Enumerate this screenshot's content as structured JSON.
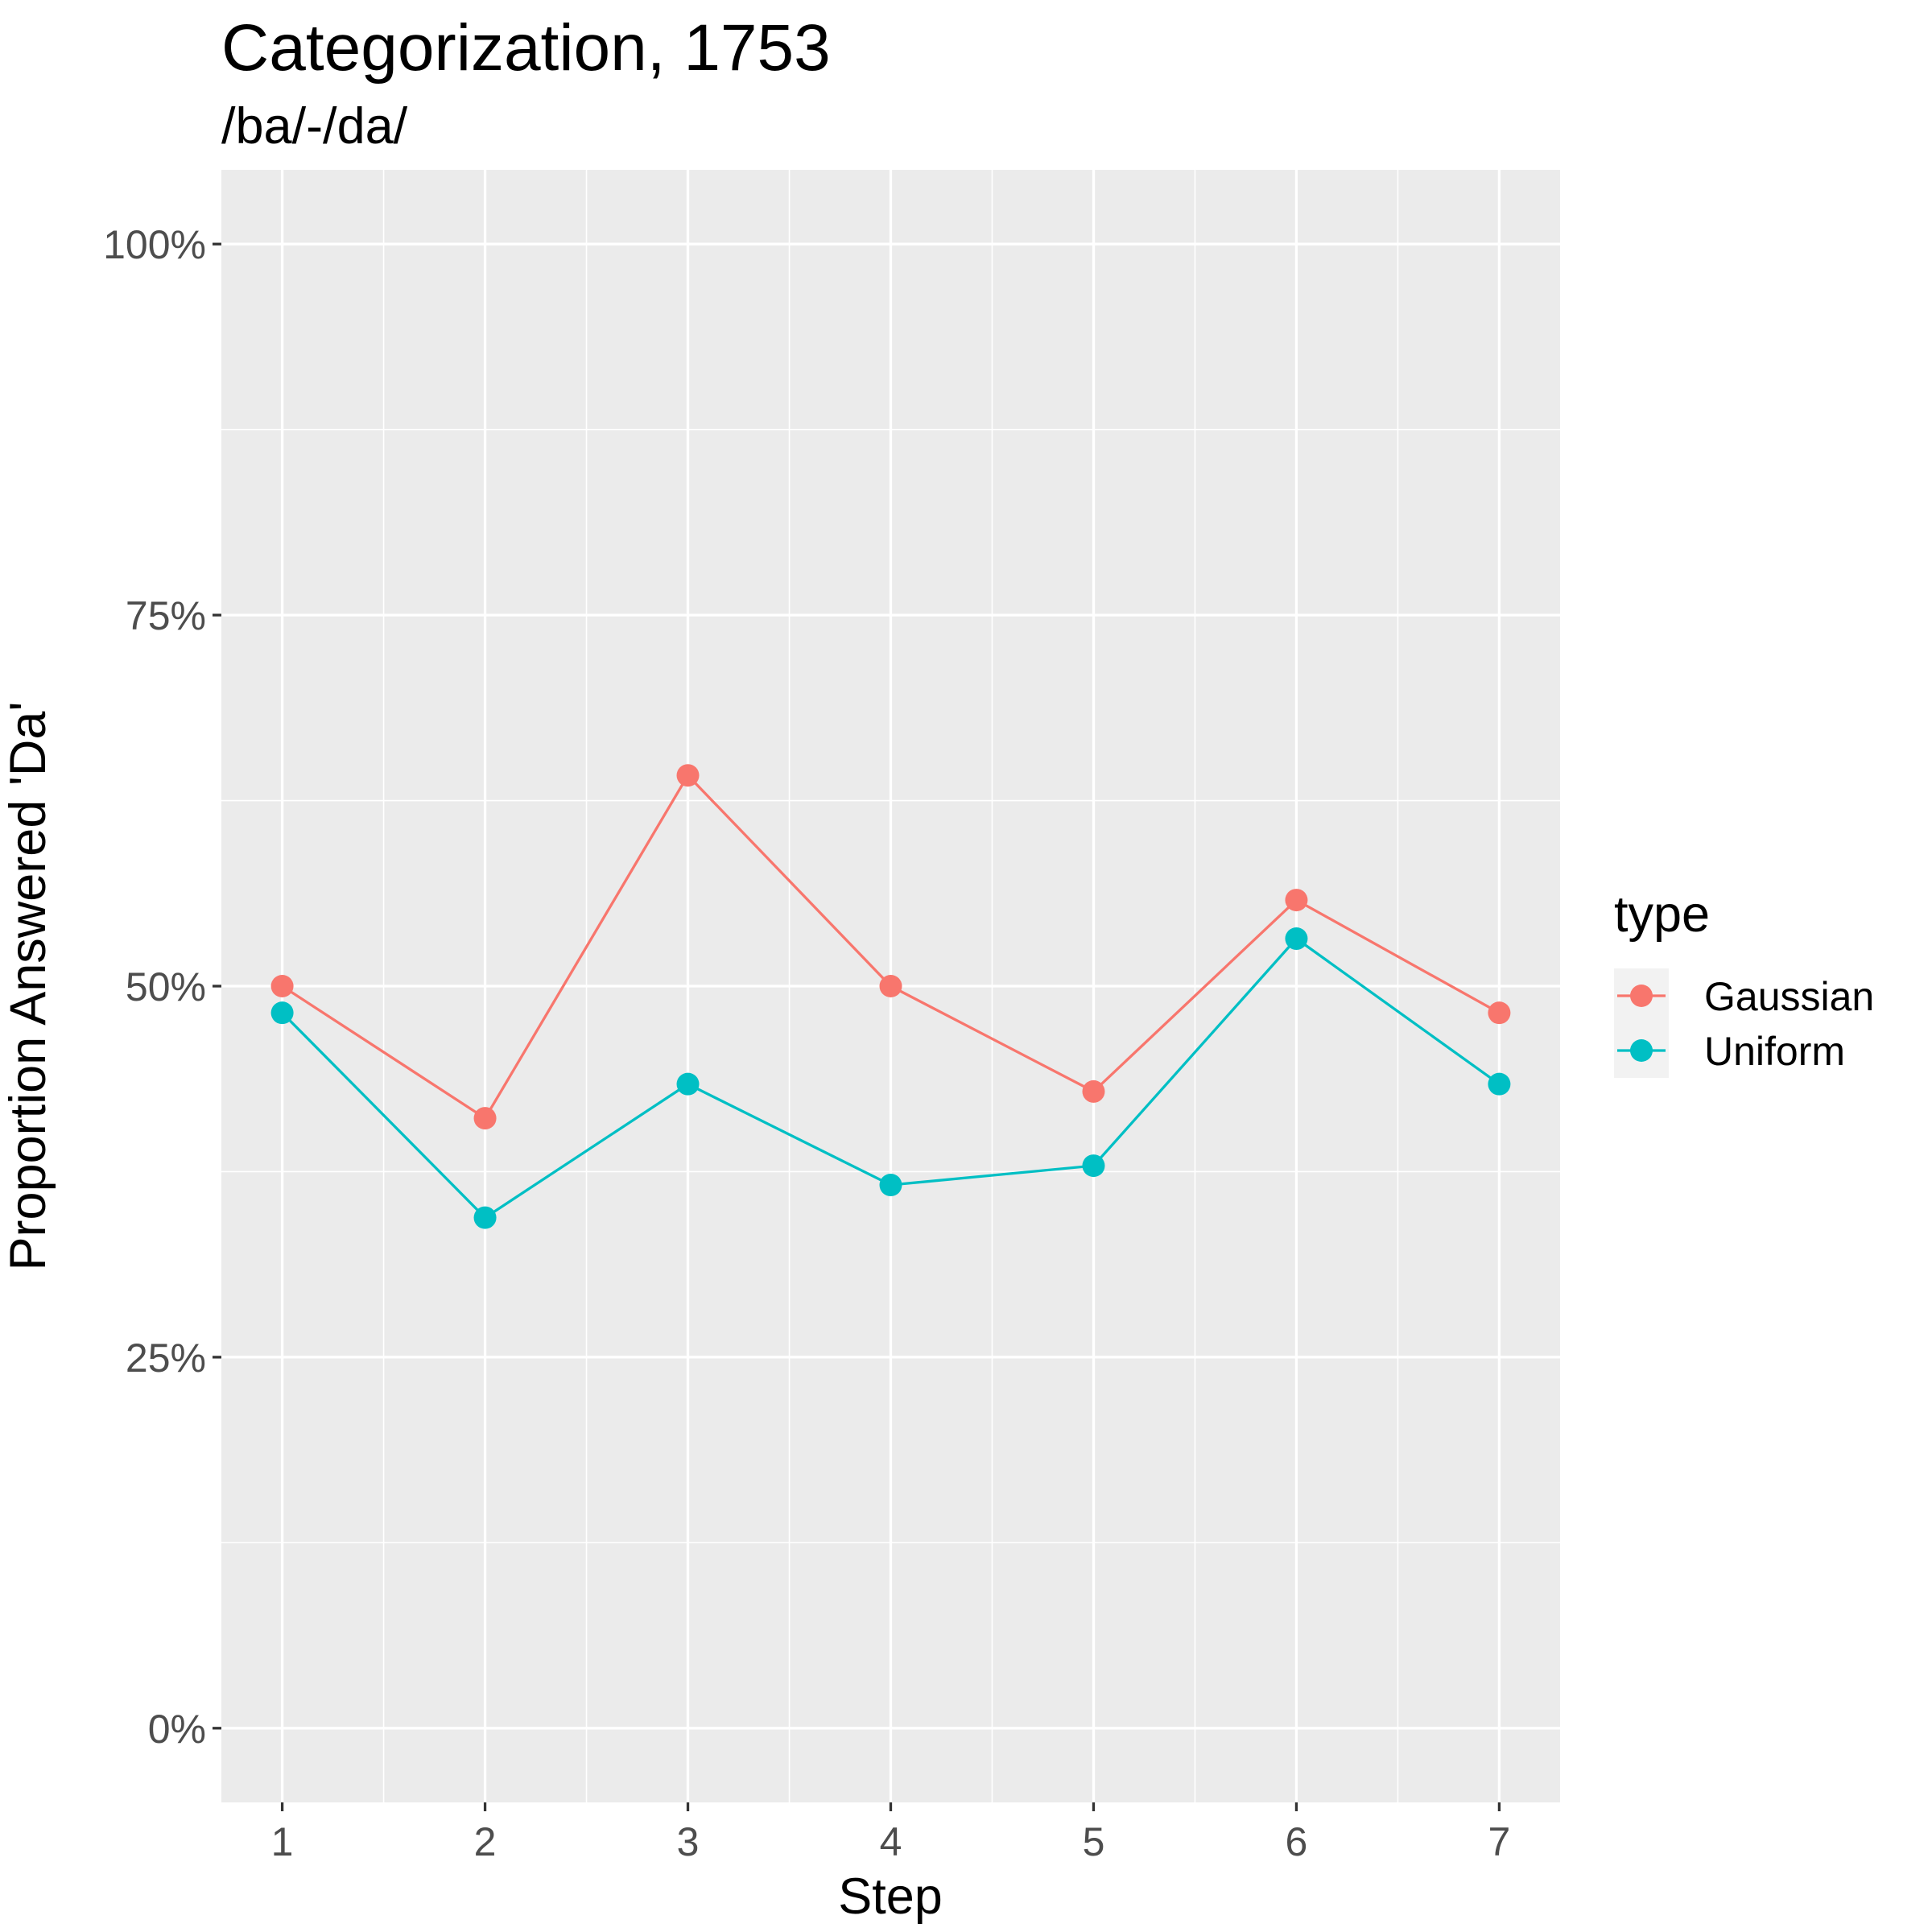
{
  "chart_data": {
    "type": "line",
    "title": "Categorization, 1753",
    "subtitle": "/ba/-/da/",
    "xlabel": "Step",
    "ylabel": "Proportion Answered 'Da'",
    "x": [
      1,
      2,
      3,
      4,
      5,
      6,
      7
    ],
    "ylim": [
      -0.05,
      1.05
    ],
    "xlim": [
      0.7,
      7.3
    ],
    "y_ticks": [
      0,
      0.25,
      0.5,
      0.75,
      1
    ],
    "y_tick_labels": [
      "0%",
      "25%",
      "50%",
      "75%",
      "100%"
    ],
    "x_tick_labels": [
      "1",
      "2",
      "3",
      "4",
      "5",
      "6",
      "7"
    ],
    "grid": true,
    "legend": {
      "title": "type",
      "position": "right"
    },
    "series": [
      {
        "name": "Gaussian",
        "color": "#F8766D",
        "values": [
          0.5,
          0.411,
          0.642,
          0.5,
          0.429,
          0.558,
          0.482
        ]
      },
      {
        "name": "Uniform",
        "color": "#00BFC4",
        "values": [
          0.482,
          0.344,
          0.434,
          0.366,
          0.379,
          0.532,
          0.434
        ]
      }
    ]
  }
}
